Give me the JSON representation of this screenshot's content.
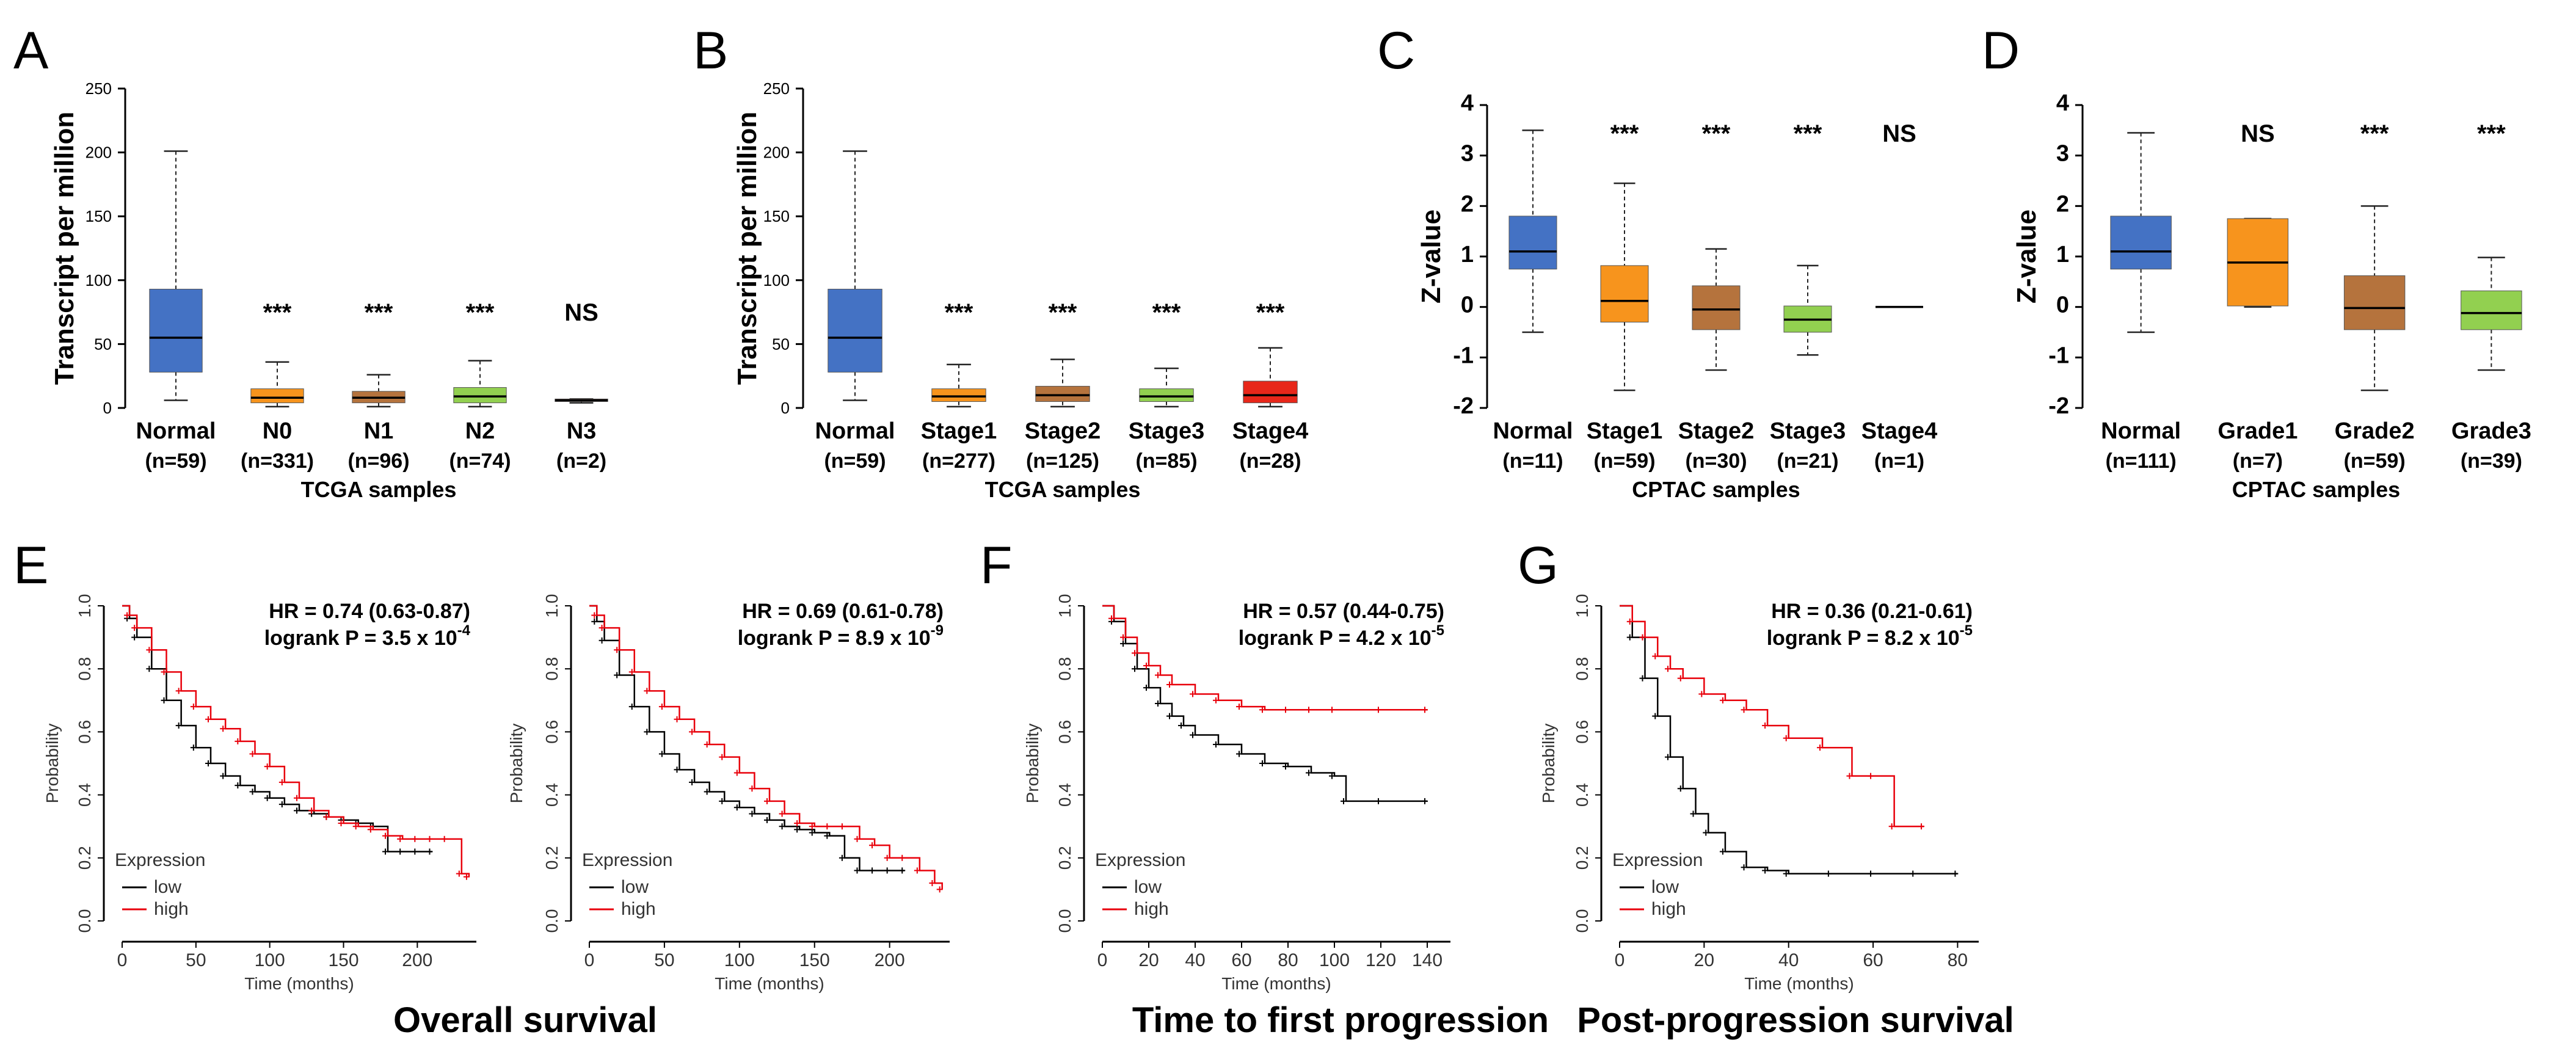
{
  "chart_data": [
    {
      "panel": "A",
      "type": "boxplot",
      "xlabel": "TCGA samples",
      "ylabel": "Transcript per million",
      "ylim": [
        0,
        250
      ],
      "yticks": [
        0,
        50,
        100,
        150,
        200,
        250
      ],
      "groups": [
        {
          "label": "Normal",
          "n": "(n=59)",
          "min": 6,
          "q1": 28,
          "median": 55,
          "q3": 93,
          "max": 201,
          "color": "#4472C4",
          "sig": ""
        },
        {
          "label": "N0",
          "n": "(n=331)",
          "min": 1,
          "q1": 4,
          "median": 8,
          "q3": 15,
          "max": 36,
          "color": "#F7941D",
          "sig": "***"
        },
        {
          "label": "N1",
          "n": "(n=96)",
          "min": 1,
          "q1": 4,
          "median": 8,
          "q3": 13,
          "max": 26,
          "color": "#B5733D",
          "sig": "***"
        },
        {
          "label": "N2",
          "n": "(n=74)",
          "min": 1,
          "q1": 4,
          "median": 9,
          "q3": 16,
          "max": 37,
          "color": "#92D050",
          "sig": "***"
        },
        {
          "label": "N3",
          "n": "(n=2)",
          "min": 4,
          "q1": 5,
          "median": 6,
          "q3": 7,
          "max": 7,
          "color": "#C0392B",
          "sig": "NS"
        }
      ]
    },
    {
      "panel": "B",
      "type": "boxplot",
      "xlabel": "TCGA samples",
      "ylabel": "Transcript per million",
      "ylim": [
        0,
        250
      ],
      "yticks": [
        0,
        50,
        100,
        150,
        200,
        250
      ],
      "groups": [
        {
          "label": "Normal",
          "n": "(n=59)",
          "min": 6,
          "q1": 28,
          "median": 55,
          "q3": 93,
          "max": 201,
          "color": "#4472C4",
          "sig": ""
        },
        {
          "label": "Stage1",
          "n": "(n=277)",
          "min": 1,
          "q1": 5,
          "median": 9,
          "q3": 15,
          "max": 34,
          "color": "#F7941D",
          "sig": "***"
        },
        {
          "label": "Stage2",
          "n": "(n=125)",
          "min": 1,
          "q1": 5,
          "median": 10,
          "q3": 17,
          "max": 38,
          "color": "#B5733D",
          "sig": "***"
        },
        {
          "label": "Stage3",
          "n": "(n=85)",
          "min": 1,
          "q1": 5,
          "median": 9,
          "q3": 15,
          "max": 31,
          "color": "#92D050",
          "sig": "***"
        },
        {
          "label": "Stage4",
          "n": "(n=28)",
          "min": 1,
          "q1": 4,
          "median": 10,
          "q3": 21,
          "max": 47,
          "color": "#E8271A",
          "sig": "***"
        }
      ]
    },
    {
      "panel": "C",
      "type": "boxplot",
      "xlabel": "CPTAC samples",
      "ylabel": "Z-value",
      "ylim": [
        -2,
        4
      ],
      "yticks": [
        -2,
        -1,
        0,
        1,
        2,
        3,
        4
      ],
      "groups": [
        {
          "label": "Normal",
          "n": "(n=11)",
          "min": -0.5,
          "q1": 0.75,
          "median": 1.1,
          "q3": 1.8,
          "max": 3.5,
          "color": "#4472C4",
          "sig": ""
        },
        {
          "label": "Stage1",
          "n": "(n=59)",
          "min": -1.65,
          "q1": -0.3,
          "median": 0.12,
          "q3": 0.82,
          "max": 2.45,
          "color": "#F7941D",
          "sig": "***"
        },
        {
          "label": "Stage2",
          "n": "(n=30)",
          "min": -1.25,
          "q1": -0.45,
          "median": -0.05,
          "q3": 0.42,
          "max": 1.15,
          "color": "#B5733D",
          "sig": "***"
        },
        {
          "label": "Stage3",
          "n": "(n=21)",
          "min": -0.95,
          "q1": -0.5,
          "median": -0.25,
          "q3": 0.02,
          "max": 0.82,
          "color": "#92D050",
          "sig": "***"
        },
        {
          "label": "Stage4",
          "n": "(n=1)",
          "min": 0,
          "q1": 0,
          "median": 0,
          "q3": 0,
          "max": 0,
          "color": "#E8271A",
          "sig": "NS"
        }
      ]
    },
    {
      "panel": "D",
      "type": "boxplot",
      "xlabel": "CPTAC samples",
      "ylabel": "Z-value",
      "ylim": [
        -2,
        4
      ],
      "yticks": [
        -2,
        -1,
        0,
        1,
        2,
        3,
        4
      ],
      "groups": [
        {
          "label": "Normal",
          "n": "(n=111)",
          "min": -0.5,
          "q1": 0.75,
          "median": 1.1,
          "q3": 1.8,
          "max": 3.45,
          "color": "#4472C4",
          "sig": ""
        },
        {
          "label": "Grade1",
          "n": "(n=7)",
          "min": 0,
          "q1": 0.02,
          "median": 0.88,
          "q3": 1.75,
          "max": 1.75,
          "color": "#F7941D",
          "sig": "NS"
        },
        {
          "label": "Grade2",
          "n": "(n=59)",
          "min": -1.65,
          "q1": -0.45,
          "median": -0.02,
          "q3": 0.62,
          "max": 2.0,
          "color": "#B5733D",
          "sig": "***"
        },
        {
          "label": "Grade3",
          "n": "(n=39)",
          "min": -1.25,
          "q1": -0.45,
          "median": -0.12,
          "q3": 0.32,
          "max": 0.98,
          "color": "#92D050",
          "sig": "***"
        }
      ]
    },
    {
      "panel": "E1",
      "type": "line",
      "subtype": "kaplan-meier",
      "xlabel": "Time (months)",
      "ylabel": "Probability",
      "xlim": [
        0,
        240
      ],
      "xticks": [
        0,
        50,
        100,
        150,
        200
      ],
      "ylim": [
        0,
        1
      ],
      "yticks": [
        "0.0",
        "0.2",
        "0.4",
        "0.6",
        "0.8",
        "1.0"
      ],
      "hr": "HR = 0.74 (0.63-0.87)",
      "logrank": "logrank P = 3.5 x 10",
      "logrank_exp": "-4",
      "legend_title": "Expression",
      "series": [
        {
          "name": "low",
          "color": "#000000",
          "x": [
            0,
            5,
            10,
            20,
            30,
            40,
            50,
            60,
            70,
            80,
            90,
            100,
            110,
            120,
            130,
            140,
            150,
            160,
            170,
            180,
            190,
            200,
            210
          ],
          "y": [
            1.0,
            0.96,
            0.9,
            0.8,
            0.7,
            0.62,
            0.55,
            0.5,
            0.46,
            0.43,
            0.41,
            0.39,
            0.37,
            0.35,
            0.34,
            0.33,
            0.32,
            0.31,
            0.3,
            0.22,
            0.22,
            0.22,
            0.22
          ]
        },
        {
          "name": "high",
          "color": "#E8000B",
          "x": [
            0,
            5,
            10,
            20,
            30,
            40,
            50,
            60,
            70,
            80,
            90,
            100,
            110,
            120,
            130,
            140,
            150,
            160,
            170,
            180,
            190,
            200,
            210,
            220,
            230,
            235
          ],
          "y": [
            1.0,
            0.97,
            0.93,
            0.86,
            0.79,
            0.73,
            0.68,
            0.64,
            0.61,
            0.57,
            0.53,
            0.49,
            0.44,
            0.39,
            0.35,
            0.33,
            0.31,
            0.3,
            0.29,
            0.27,
            0.26,
            0.26,
            0.26,
            0.26,
            0.15,
            0.14
          ]
        }
      ]
    },
    {
      "panel": "E2",
      "type": "line",
      "subtype": "kaplan-meier",
      "xlabel": "Time (months)",
      "ylabel": "Probability",
      "xlim": [
        0,
        240
      ],
      "xticks": [
        0,
        50,
        100,
        150,
        200
      ],
      "ylim": [
        0,
        1
      ],
      "yticks": [
        "0.0",
        "0.2",
        "0.4",
        "0.6",
        "0.8",
        "1.0"
      ],
      "hr": "HR = 0.69 (0.61-0.78)",
      "logrank": "logrank P = 8.9 x 10",
      "logrank_exp": "-9",
      "legend_title": "Expression",
      "series": [
        {
          "name": "low",
          "color": "#000000",
          "x": [
            0,
            5,
            10,
            20,
            30,
            40,
            50,
            60,
            70,
            80,
            90,
            100,
            110,
            120,
            130,
            140,
            150,
            160,
            170,
            180,
            190,
            200,
            210
          ],
          "y": [
            1.0,
            0.95,
            0.89,
            0.78,
            0.68,
            0.6,
            0.53,
            0.48,
            0.44,
            0.41,
            0.38,
            0.36,
            0.34,
            0.32,
            0.3,
            0.29,
            0.28,
            0.27,
            0.2,
            0.16,
            0.16,
            0.16,
            0.16
          ]
        },
        {
          "name": "high",
          "color": "#E8000B",
          "x": [
            0,
            5,
            10,
            20,
            30,
            40,
            50,
            60,
            70,
            80,
            90,
            100,
            110,
            120,
            130,
            140,
            150,
            160,
            170,
            180,
            190,
            200,
            210,
            220,
            230,
            235
          ],
          "y": [
            1.0,
            0.97,
            0.93,
            0.86,
            0.79,
            0.73,
            0.68,
            0.64,
            0.6,
            0.56,
            0.52,
            0.47,
            0.42,
            0.38,
            0.34,
            0.31,
            0.3,
            0.3,
            0.3,
            0.26,
            0.24,
            0.2,
            0.2,
            0.16,
            0.12,
            0.1
          ]
        }
      ]
    },
    {
      "panel": "F",
      "type": "line",
      "subtype": "kaplan-meier",
      "xlabel": "Time (months)",
      "ylabel": "Probability",
      "xlim": [
        0,
        150
      ],
      "xticks": [
        0,
        20,
        40,
        60,
        80,
        100,
        120,
        140
      ],
      "ylim": [
        0,
        1
      ],
      "yticks": [
        "0.0",
        "0.2",
        "0.4",
        "0.6",
        "0.8",
        "1.0"
      ],
      "hr": "HR = 0.57 (0.44-0.75)",
      "logrank": "logrank P = 4.2 x 10",
      "logrank_exp": "-5",
      "legend_title": "Expression",
      "series": [
        {
          "name": "low",
          "color": "#000000",
          "x": [
            0,
            5,
            10,
            15,
            20,
            25,
            30,
            35,
            40,
            50,
            60,
            70,
            80,
            90,
            100,
            105,
            120,
            140
          ],
          "y": [
            1.0,
            0.95,
            0.88,
            0.8,
            0.74,
            0.69,
            0.65,
            0.62,
            0.59,
            0.56,
            0.53,
            0.5,
            0.49,
            0.47,
            0.46,
            0.38,
            0.38,
            0.38
          ]
        },
        {
          "name": "high",
          "color": "#E8000B",
          "x": [
            0,
            5,
            10,
            15,
            20,
            25,
            30,
            40,
            50,
            60,
            70,
            80,
            90,
            100,
            120,
            140
          ],
          "y": [
            1.0,
            0.96,
            0.9,
            0.85,
            0.81,
            0.78,
            0.75,
            0.72,
            0.7,
            0.68,
            0.67,
            0.67,
            0.67,
            0.67,
            0.67,
            0.67
          ]
        }
      ]
    },
    {
      "panel": "G",
      "type": "line",
      "subtype": "kaplan-meier",
      "xlabel": "Time (months)",
      "ylabel": "Probability",
      "xlim": [
        0,
        85
      ],
      "xticks": [
        0,
        20,
        40,
        60,
        80
      ],
      "ylim": [
        0,
        1
      ],
      "yticks": [
        "0.0",
        "0.2",
        "0.4",
        "0.6",
        "0.8",
        "1.0"
      ],
      "hr": "HR = 0.36 (0.21-0.61)",
      "logrank": "logrank P = 8.2 x 10",
      "logrank_exp": "-5",
      "legend_title": "Expression",
      "series": [
        {
          "name": "low",
          "color": "#000000",
          "x": [
            0,
            3,
            6,
            9,
            12,
            15,
            18,
            21,
            25,
            30,
            35,
            40,
            50,
            60,
            70,
            80
          ],
          "y": [
            1.0,
            0.9,
            0.77,
            0.65,
            0.52,
            0.42,
            0.34,
            0.28,
            0.22,
            0.17,
            0.16,
            0.15,
            0.15,
            0.15,
            0.15,
            0.15
          ]
        },
        {
          "name": "high",
          "color": "#E8000B",
          "x": [
            0,
            3,
            6,
            9,
            12,
            15,
            20,
            25,
            30,
            35,
            40,
            48,
            55,
            60,
            65,
            72
          ],
          "y": [
            1.0,
            0.95,
            0.9,
            0.84,
            0.8,
            0.77,
            0.72,
            0.7,
            0.67,
            0.62,
            0.58,
            0.55,
            0.46,
            0.46,
            0.3,
            0.3
          ]
        }
      ]
    }
  ],
  "captions": {
    "panel_letters": [
      "A",
      "B",
      "C",
      "D",
      "E",
      "F",
      "G"
    ],
    "overall_survival": "Overall survival",
    "time_to_first_progression": "Time to first progression",
    "post_progression_survival": "Post-progression survival"
  }
}
